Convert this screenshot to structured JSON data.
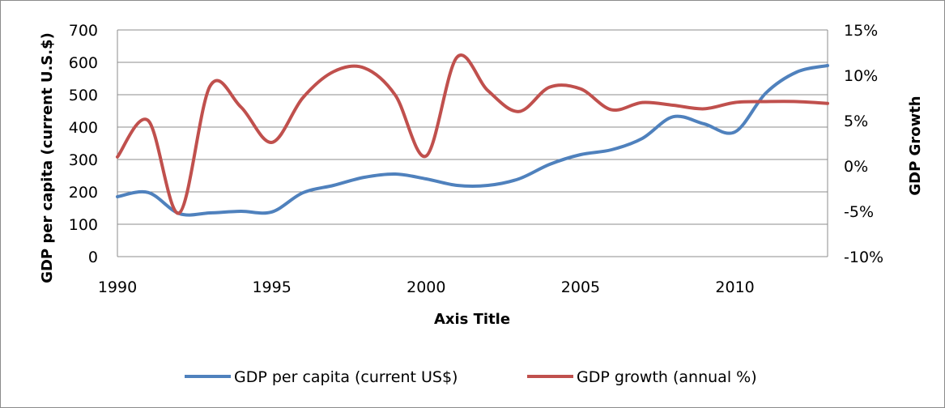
{
  "chart_data": {
    "type": "line",
    "title": "",
    "xlabel": "Axis Title",
    "ylabel": "GDP per capita (current U.S.$)",
    "y2label": "GDP Growth",
    "xlim": [
      1990,
      2013
    ],
    "ylim": [
      0,
      700
    ],
    "y2lim": [
      -10,
      15
    ],
    "x_ticks": [
      "1990",
      "1995",
      "2000",
      "2005",
      "2010"
    ],
    "y_ticks": [
      "0",
      "100",
      "200",
      "300",
      "400",
      "500",
      "600",
      "700"
    ],
    "y2_ticks": [
      "-10%",
      "-5%",
      "0%",
      "5%",
      "10%",
      "15%"
    ],
    "grid": true,
    "legend_position": "bottom",
    "x": [
      1990,
      1991,
      1992,
      1993,
      1994,
      1995,
      1996,
      1997,
      1998,
      1999,
      2000,
      2001,
      2002,
      2003,
      2004,
      2005,
      2006,
      2007,
      2008,
      2009,
      2010,
      2011,
      2012,
      2013
    ],
    "series": [
      {
        "name": "GDP per capita (current US$)",
        "axis": "left",
        "color": "#4f81bd",
        "values": [
          185,
          198,
          133,
          135,
          140,
          138,
          197,
          220,
          245,
          255,
          240,
          220,
          220,
          240,
          285,
          315,
          330,
          365,
          432,
          410,
          385,
          505,
          570,
          590
        ]
      },
      {
        "name": "GDP growth (annual %)",
        "axis": "right",
        "color": "#c0504d",
        "values": [
          1.0,
          5.0,
          -5.2,
          8.8,
          6.5,
          2.6,
          7.5,
          10.4,
          10.8,
          7.8,
          1.1,
          12.0,
          8.3,
          6.0,
          8.7,
          8.5,
          6.2,
          7.0,
          6.7,
          6.3,
          7.0,
          7.1,
          7.1,
          6.9
        ]
      }
    ]
  }
}
